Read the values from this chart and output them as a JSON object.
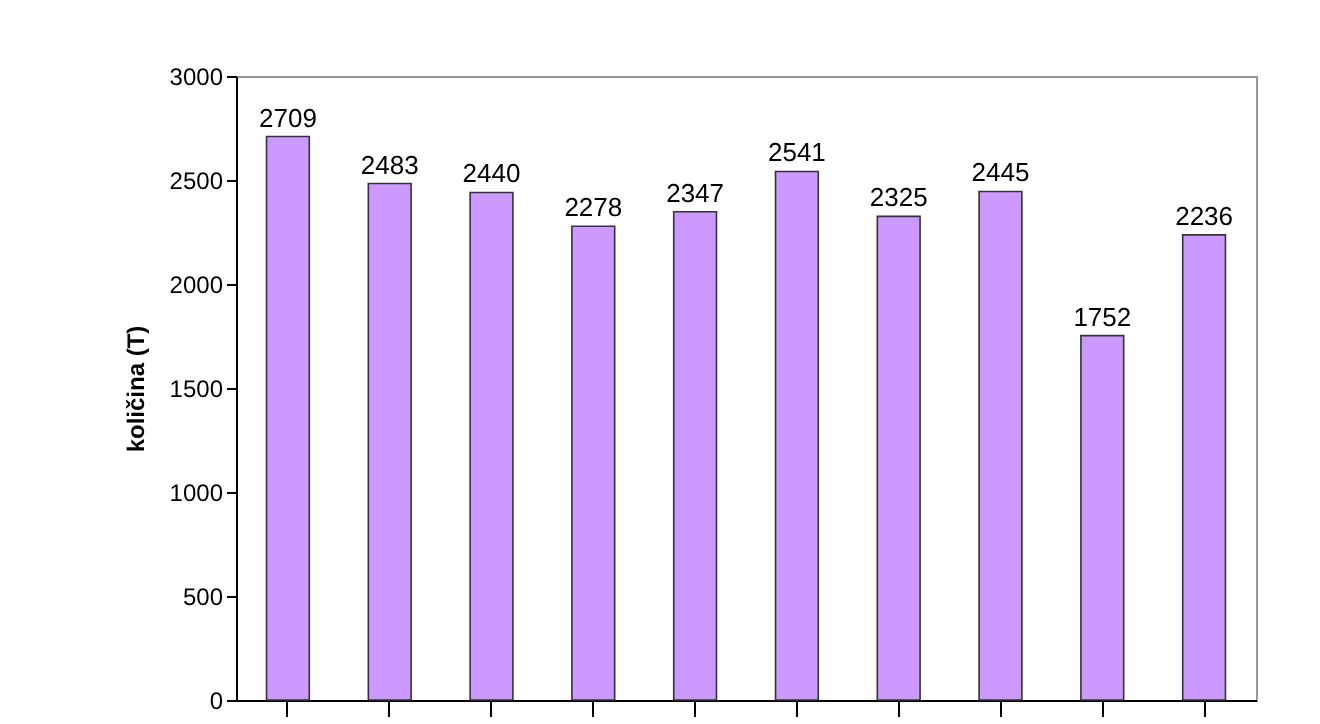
{
  "chart_data": {
    "type": "bar",
    "ylabel": "količina (T)",
    "categories": [
      null,
      null,
      null,
      null,
      null,
      null,
      null,
      null,
      null,
      null
    ],
    "values": [
      2709,
      2483,
      2440,
      2278,
      2347,
      2541,
      2325,
      2445,
      1752,
      2236
    ],
    "color": "#cc99ff",
    "ylim": [
      0,
      3000
    ],
    "yticks": [
      0,
      500,
      1000,
      1500,
      2000,
      2500,
      3000
    ],
    "data_labels": true,
    "tick_labels": "y"
  }
}
